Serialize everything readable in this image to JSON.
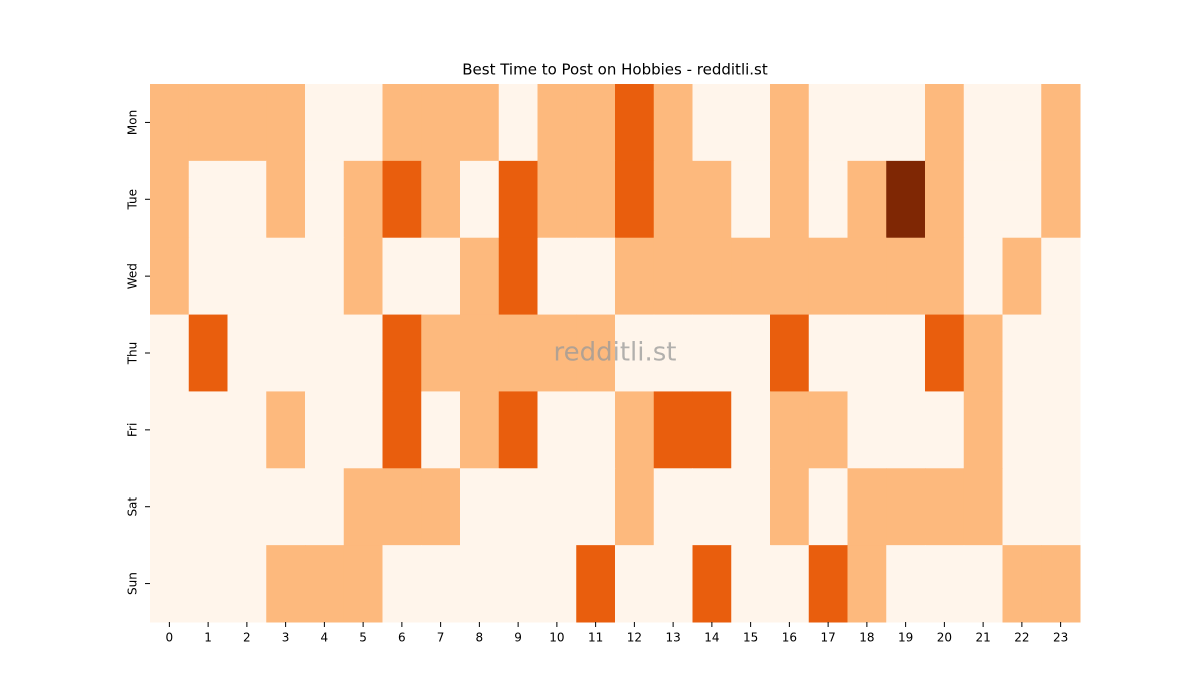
{
  "chart_data": {
    "type": "heatmap",
    "title": "Best Time to Post on Hobbies - redditli.st",
    "annotation": "redditli.st",
    "columns": [
      0,
      1,
      2,
      3,
      4,
      5,
      6,
      7,
      8,
      9,
      10,
      11,
      12,
      13,
      14,
      15,
      16,
      17,
      18,
      19,
      20,
      21,
      22,
      23
    ],
    "rows": [
      "Mon",
      "Tue",
      "Wed",
      "Thu",
      "Fri",
      "Sat",
      "Sun"
    ],
    "values": [
      [
        1,
        1,
        1,
        1,
        0,
        0,
        1,
        1,
        1,
        0,
        1,
        1,
        2,
        1,
        0,
        0,
        1,
        0,
        0,
        0,
        1,
        0,
        0,
        1
      ],
      [
        1,
        0,
        0,
        1,
        0,
        1,
        2,
        1,
        0,
        2,
        1,
        1,
        2,
        1,
        1,
        0,
        1,
        0,
        1,
        3,
        1,
        0,
        0,
        1
      ],
      [
        1,
        0,
        0,
        0,
        0,
        1,
        0,
        0,
        1,
        2,
        0,
        0,
        1,
        1,
        1,
        1,
        1,
        1,
        1,
        1,
        1,
        0,
        1,
        0
      ],
      [
        0,
        2,
        0,
        0,
        0,
        0,
        2,
        1,
        1,
        1,
        1,
        1,
        0,
        0,
        0,
        0,
        2,
        0,
        0,
        0,
        2,
        1,
        0,
        0
      ],
      [
        0,
        0,
        0,
        1,
        0,
        0,
        2,
        0,
        1,
        2,
        0,
        0,
        1,
        2,
        2,
        0,
        1,
        1,
        0,
        0,
        0,
        1,
        0,
        0
      ],
      [
        0,
        0,
        0,
        0,
        0,
        1,
        1,
        1,
        0,
        0,
        0,
        0,
        1,
        0,
        0,
        0,
        1,
        0,
        1,
        1,
        1,
        1,
        0,
        0
      ],
      [
        0,
        0,
        0,
        1,
        1,
        1,
        0,
        0,
        0,
        0,
        0,
        2,
        0,
        0,
        2,
        0,
        0,
        2,
        1,
        0,
        0,
        0,
        1,
        1
      ]
    ],
    "zlim": [
      0,
      3
    ],
    "colormap": [
      "#fff5eb",
      "#fdb97d",
      "#e95e0d",
      "#7f2704"
    ]
  }
}
